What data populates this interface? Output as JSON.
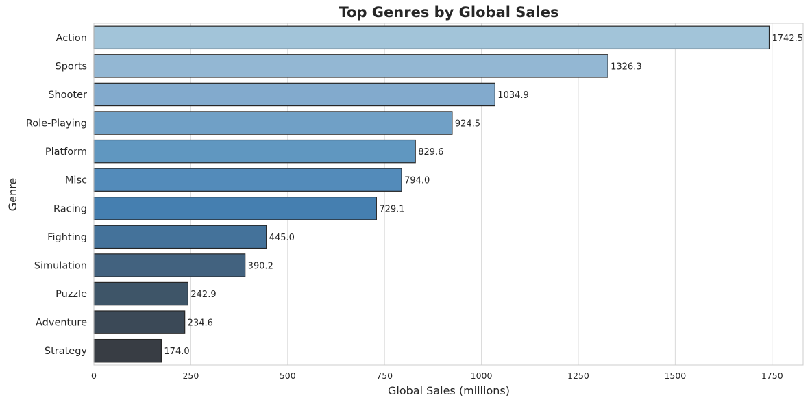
{
  "chart_data": {
    "type": "bar",
    "orientation": "horizontal",
    "title": "Top Genres by Global Sales",
    "xlabel": "Global Sales (millions)",
    "ylabel": "Genre",
    "categories": [
      "Action",
      "Sports",
      "Shooter",
      "Role-Playing",
      "Platform",
      "Misc",
      "Racing",
      "Fighting",
      "Simulation",
      "Puzzle",
      "Adventure",
      "Strategy"
    ],
    "values": [
      1742.5,
      1326.3,
      1034.9,
      924.5,
      829.6,
      794.0,
      729.1,
      445.0,
      390.2,
      242.9,
      234.6,
      174.0
    ],
    "value_labels": [
      "1742.5",
      "1326.3",
      "1034.9",
      "924.5",
      "829.6",
      "794.0",
      "729.1",
      "445.0",
      "390.2",
      "242.9",
      "234.6",
      "174.0"
    ],
    "xticks": [
      0,
      250,
      500,
      750,
      1000,
      1250,
      1500,
      1750
    ],
    "xtick_labels": [
      "0",
      "250",
      "500",
      "750",
      "1000",
      "1250",
      "1500",
      "1750"
    ],
    "xlim": [
      0,
      1830
    ],
    "grid": "vertical",
    "colors": [
      "#a2c4d9",
      "#93b7d3",
      "#82aacd",
      "#70a0c6",
      "#6097c0",
      "#538bba",
      "#457fb0",
      "#44729a",
      "#42627f",
      "#3e5568",
      "#3b4957",
      "#383d44"
    ]
  }
}
